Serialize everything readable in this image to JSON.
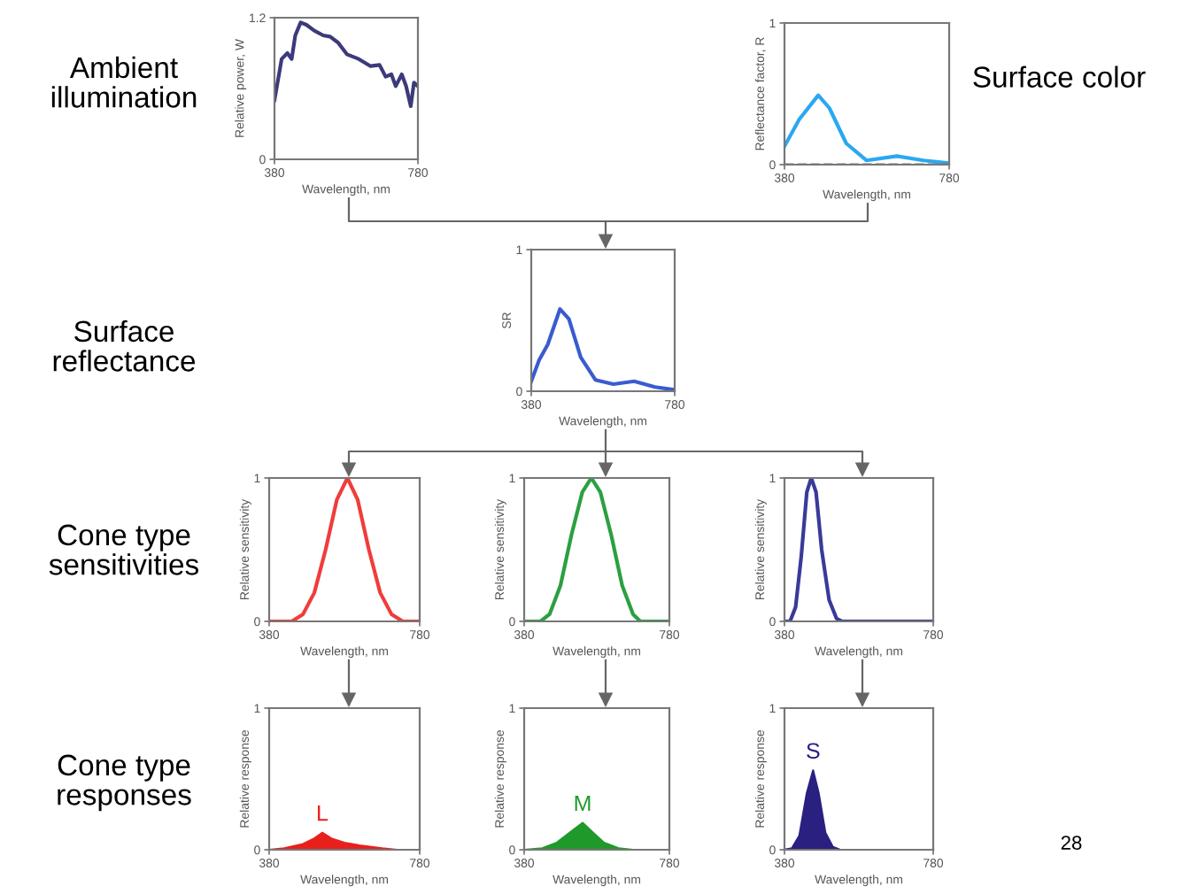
{
  "chart_data": [
    {
      "type": "line",
      "xlabel": "Wavelength, nm",
      "ylabel": "Relative power, W",
      "xlim": [
        380,
        780
      ],
      "ylim": [
        0,
        1.2
      ],
      "xticks": [
        380,
        780
      ],
      "yticks": [
        0,
        1.2
      ],
      "annotations": [
        "Ambient illumination"
      ],
      "series": [
        {
          "color": "#3c3a7a",
          "x": [
            380,
            400,
            416,
            428,
            438,
            453,
            469,
            491,
            516,
            535,
            557,
            582,
            615,
            648,
            673,
            690,
            706,
            718,
            735,
            747,
            760,
            769,
            780
          ],
          "values": [
            0.5,
            0.85,
            0.9,
            0.85,
            1.05,
            1.16,
            1.14,
            1.09,
            1.05,
            1.04,
            0.99,
            0.89,
            0.85,
            0.79,
            0.8,
            0.7,
            0.72,
            0.62,
            0.72,
            0.62,
            0.45,
            0.65,
            0.62
          ]
        }
      ]
    },
    {
      "type": "line",
      "xlabel": "Wavelength, nm",
      "ylabel": "Reflectance factor, R",
      "xlim": [
        380,
        780
      ],
      "ylim": [
        0,
        1
      ],
      "xticks": [
        380,
        780
      ],
      "yticks": [
        0,
        1
      ],
      "annotations": [
        "Surface color"
      ],
      "ref_lines": [
        {
          "axis": "y",
          "value": 0,
          "color": "#777777",
          "line_style": "dashed"
        }
      ],
      "series": [
        {
          "color": "#2aa8f0",
          "x": [
            380,
            416,
            462,
            489,
            530,
            579,
            653,
            718,
            780
          ],
          "values": [
            0.13,
            0.32,
            0.49,
            0.4,
            0.15,
            0.03,
            0.06,
            0.03,
            0.01
          ]
        }
      ]
    },
    {
      "type": "line",
      "xlabel": "Wavelength, nm",
      "ylabel": "SR",
      "xlim": [
        380,
        780
      ],
      "ylim": [
        0,
        1
      ],
      "xticks": [
        380,
        780
      ],
      "yticks": [
        0,
        1
      ],
      "annotations": [
        "Surface reflectance"
      ],
      "series": [
        {
          "color": "#3a5bd0",
          "x": [
            380,
            402,
            426,
            460,
            485,
            518,
            559,
            609,
            667,
            725,
            780
          ],
          "values": [
            0.07,
            0.22,
            0.33,
            0.58,
            0.51,
            0.24,
            0.08,
            0.05,
            0.07,
            0.03,
            0.01
          ]
        }
      ]
    },
    {
      "type": "line",
      "xlabel": "Wavelength, nm",
      "ylabel": "Relative sensitivity",
      "xlim": [
        380,
        780
      ],
      "ylim": [
        0,
        1
      ],
      "xticks": [
        380,
        780
      ],
      "yticks": [
        0,
        1
      ],
      "annotations": [
        "Cone type sensitivities"
      ],
      "series": [
        {
          "color": "#f03c3c",
          "x": [
            380,
            440,
            470,
            500,
            530,
            560,
            588,
            615,
            645,
            675,
            705,
            735,
            780
          ],
          "values": [
            0,
            0,
            0.05,
            0.2,
            0.5,
            0.85,
            1,
            0.85,
            0.5,
            0.2,
            0.05,
            0,
            0
          ]
        }
      ]
    },
    {
      "type": "line",
      "xlabel": "Wavelength, nm",
      "ylabel": "Relative sensitivity",
      "xlim": [
        380,
        780
      ],
      "ylim": [
        0,
        1
      ],
      "xticks": [
        380,
        780
      ],
      "yticks": [
        0,
        1
      ],
      "series": [
        {
          "color": "#2aa040",
          "x": [
            380,
            425,
            450,
            480,
            510,
            540,
            565,
            590,
            620,
            650,
            680,
            700,
            780
          ],
          "values": [
            0,
            0,
            0.05,
            0.25,
            0.6,
            0.9,
            1,
            0.9,
            0.6,
            0.25,
            0.05,
            0,
            0
          ]
        }
      ]
    },
    {
      "type": "line",
      "xlabel": "Wavelength, nm",
      "ylabel": "Relative sensitivity",
      "xlim": [
        380,
        780
      ],
      "ylim": [
        0,
        1
      ],
      "xticks": [
        380,
        780
      ],
      "yticks": [
        0,
        1
      ],
      "series": [
        {
          "color": "#3a3a9a",
          "x": [
            380,
            395,
            410,
            425,
            440,
            452,
            465,
            480,
            500,
            520,
            535,
            780
          ],
          "values": [
            0,
            0,
            0.1,
            0.45,
            0.9,
            1,
            0.9,
            0.5,
            0.15,
            0.02,
            0,
            0
          ]
        }
      ]
    },
    {
      "type": "area",
      "xlabel": "Wavelength, nm",
      "ylabel": "Relative response",
      "xlim": [
        380,
        780
      ],
      "ylim": [
        0,
        1
      ],
      "xticks": [
        380,
        780
      ],
      "yticks": [
        0,
        1
      ],
      "annotations": [
        "Cone type responses",
        {
          "text": "L",
          "x": 521,
          "y": 0.12
        }
      ],
      "series": [
        {
          "color": "#e8201c",
          "x": [
            380,
            420,
            470,
            500,
            521,
            545,
            580,
            620,
            680,
            720,
            780
          ],
          "values": [
            0,
            0.01,
            0.04,
            0.08,
            0.12,
            0.08,
            0.05,
            0.03,
            0.01,
            0,
            0
          ]
        }
      ]
    },
    {
      "type": "area",
      "xlabel": "Wavelength, nm",
      "ylabel": "Relative response",
      "xlim": [
        380,
        780
      ],
      "ylim": [
        0,
        1
      ],
      "xticks": [
        380,
        780
      ],
      "yticks": [
        0,
        1
      ],
      "annotations": [
        {
          "text": "M",
          "x": 541,
          "y": 0.19
        }
      ],
      "series": [
        {
          "color": "#1f9a2a",
          "x": [
            380,
            430,
            470,
            505,
            541,
            570,
            600,
            640,
            680,
            780
          ],
          "values": [
            0,
            0.01,
            0.05,
            0.12,
            0.19,
            0.12,
            0.05,
            0.01,
            0,
            0
          ]
        }
      ]
    },
    {
      "type": "area",
      "xlabel": "Wavelength, nm",
      "ylabel": "Relative response",
      "xlim": [
        380,
        780
      ],
      "ylim": [
        0,
        1
      ],
      "xticks": [
        380,
        780
      ],
      "yticks": [
        0,
        1
      ],
      "annotations": [
        {
          "text": "S",
          "x": 457,
          "y": 0.56
        },
        "28"
      ],
      "series": [
        {
          "color": "#2a2080",
          "x": [
            380,
            400,
            420,
            440,
            457,
            472,
            490,
            510,
            530,
            780
          ],
          "values": [
            0,
            0.01,
            0.1,
            0.4,
            0.56,
            0.4,
            0.12,
            0.02,
            0,
            0
          ]
        }
      ]
    }
  ]
}
